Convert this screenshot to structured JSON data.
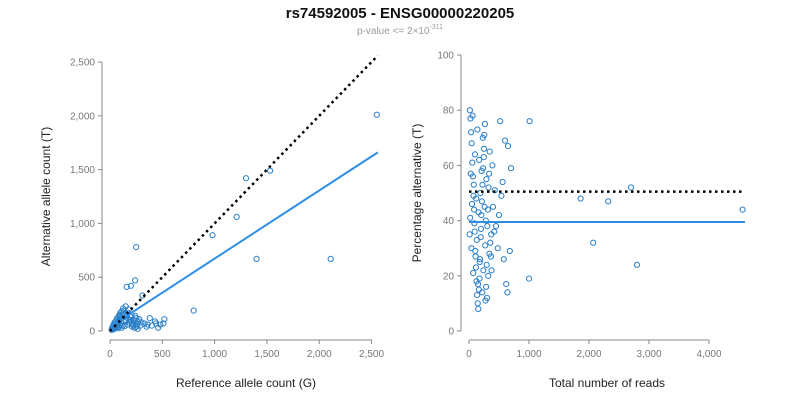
{
  "title": "rs74592005 - ENSG00000220205",
  "subtitle": {
    "text": "p-value <= 2×10",
    "exponent": "-311"
  },
  "colors": {
    "points": "#2a7fc8",
    "fit_line": "#2e8ee6",
    "reference_line": "#000000",
    "axis": "#888888",
    "tick_labels": "#777777"
  },
  "chart_data": [
    {
      "type": "scatter",
      "title": "",
      "xlabel": "Reference allele count (G)",
      "ylabel": "Alternative allele count (T)",
      "xlim": [
        0,
        2600
      ],
      "ylim": [
        0,
        2500
      ],
      "xticks": [
        0,
        500,
        1000,
        1500,
        2000,
        2500
      ],
      "yticks": [
        0,
        500,
        1000,
        1500,
        2000,
        2500
      ],
      "xtick_labels": [
        "0",
        "500",
        "1,000",
        "1,500",
        "2,000",
        "2,500"
      ],
      "ytick_labels": [
        "0",
        "500",
        "1,000",
        "1,500",
        "2,000",
        "2,500"
      ],
      "grid": false,
      "points": [
        [
          2550,
          2010
        ],
        [
          1300,
          1420
        ],
        [
          1530,
          1490
        ],
        [
          1210,
          1060
        ],
        [
          980,
          890
        ],
        [
          1400,
          670
        ],
        [
          2110,
          670
        ],
        [
          250,
          780
        ],
        [
          240,
          470
        ],
        [
          200,
          420
        ],
        [
          160,
          410
        ],
        [
          310,
          330
        ],
        [
          800,
          190
        ],
        [
          520,
          110
        ],
        [
          510,
          70
        ],
        [
          430,
          90
        ],
        [
          380,
          120
        ],
        [
          330,
          70
        ],
        [
          300,
          80
        ],
        [
          260,
          60
        ],
        [
          220,
          70
        ],
        [
          180,
          200
        ],
        [
          150,
          230
        ],
        [
          130,
          190
        ],
        [
          120,
          160
        ],
        [
          100,
          140
        ],
        [
          90,
          110
        ],
        [
          80,
          90
        ],
        [
          70,
          60
        ],
        [
          60,
          50
        ],
        [
          50,
          30
        ],
        [
          40,
          20
        ],
        [
          30,
          15
        ],
        [
          55,
          70
        ],
        [
          65,
          40
        ],
        [
          75,
          25
        ],
        [
          85,
          35
        ],
        [
          95,
          55
        ],
        [
          105,
          75
        ],
        [
          110,
          30
        ],
        [
          120,
          50
        ],
        [
          135,
          85
        ],
        [
          140,
          45
        ],
        [
          155,
          95
        ],
        [
          165,
          60
        ],
        [
          175,
          110
        ],
        [
          185,
          80
        ],
        [
          195,
          130
        ],
        [
          205,
          150
        ],
        [
          210,
          40
        ],
        [
          230,
          100
        ],
        [
          240,
          140
        ],
        [
          250,
          120
        ],
        [
          270,
          90
        ],
        [
          280,
          110
        ],
        [
          290,
          50
        ],
        [
          45,
          80
        ],
        [
          35,
          60
        ],
        [
          25,
          40
        ],
        [
          20,
          25
        ],
        [
          15,
          10
        ],
        [
          60,
          100
        ],
        [
          70,
          120
        ],
        [
          80,
          130
        ],
        [
          90,
          150
        ],
        [
          100,
          170
        ],
        [
          110,
          180
        ],
        [
          125,
          210
        ],
        [
          145,
          160
        ],
        [
          160,
          140
        ],
        [
          170,
          170
        ],
        [
          190,
          100
        ],
        [
          200,
          90
        ],
        [
          215,
          60
        ],
        [
          225,
          50
        ],
        [
          235,
          30
        ],
        [
          245,
          80
        ],
        [
          255,
          40
        ],
        [
          265,
          20
        ],
        [
          350,
          40
        ],
        [
          360,
          60
        ],
        [
          400,
          50
        ],
        [
          440,
          70
        ],
        [
          460,
          30
        ],
        [
          480,
          60
        ]
      ],
      "fit_line": [
        [
          0,
          40
        ],
        [
          2560,
          1660
        ]
      ],
      "reference_line": [
        [
          0,
          0
        ],
        [
          2560,
          2560
        ]
      ]
    },
    {
      "type": "scatter",
      "title": "",
      "xlabel": "Total number of reads",
      "ylabel": "Percentage alternative (T)",
      "xlim": [
        0,
        4600
      ],
      "ylim": [
        0,
        100
      ],
      "xticks": [
        0,
        1000,
        2000,
        3000,
        4000
      ],
      "yticks": [
        0,
        20,
        40,
        60,
        80,
        100
      ],
      "xtick_labels": [
        "0",
        "1,000",
        "2,000",
        "3,000",
        "4,000"
      ],
      "ytick_labels": [
        "0",
        "20",
        "40",
        "60",
        "80",
        "100"
      ],
      "grid": false,
      "points": [
        [
          4560,
          44
        ],
        [
          2800,
          24
        ],
        [
          2700,
          52
        ],
        [
          2320,
          47
        ],
        [
          2070,
          32
        ],
        [
          1860,
          48
        ],
        [
          1000,
          19
        ],
        [
          1010,
          76
        ],
        [
          600,
          69
        ],
        [
          650,
          67
        ],
        [
          520,
          76
        ],
        [
          560,
          54
        ],
        [
          430,
          51
        ],
        [
          450,
          38
        ],
        [
          390,
          60
        ],
        [
          370,
          35
        ],
        [
          340,
          28
        ],
        [
          320,
          20
        ],
        [
          300,
          12
        ],
        [
          290,
          55
        ],
        [
          280,
          40
        ],
        [
          270,
          31
        ],
        [
          260,
          45
        ],
        [
          250,
          66
        ],
        [
          240,
          22
        ],
        [
          230,
          70
        ],
        [
          220,
          14
        ],
        [
          210,
          58
        ],
        [
          200,
          37
        ],
        [
          190,
          50
        ],
        [
          180,
          25
        ],
        [
          170,
          62
        ],
        [
          160,
          43
        ],
        [
          150,
          17
        ],
        [
          140,
          73
        ],
        [
          130,
          33
        ],
        [
          120,
          48
        ],
        [
          110,
          27
        ],
        [
          100,
          64
        ],
        [
          90,
          39
        ],
        [
          80,
          53
        ],
        [
          70,
          21
        ],
        [
          60,
          78
        ],
        [
          50,
          46
        ],
        [
          40,
          30
        ],
        [
          30,
          57
        ],
        [
          20,
          41
        ],
        [
          10,
          35
        ],
        [
          15,
          80
        ],
        [
          25,
          77
        ],
        [
          35,
          72
        ],
        [
          45,
          68
        ],
        [
          55,
          61
        ],
        [
          65,
          56
        ],
        [
          75,
          49
        ],
        [
          85,
          44
        ],
        [
          95,
          36
        ],
        [
          105,
          29
        ],
        [
          115,
          23
        ],
        [
          125,
          18
        ],
        [
          135,
          13
        ],
        [
          145,
          10
        ],
        [
          155,
          8
        ],
        [
          165,
          15
        ],
        [
          175,
          19
        ],
        [
          185,
          26
        ],
        [
          195,
          34
        ],
        [
          205,
          42
        ],
        [
          215,
          47
        ],
        [
          225,
          53
        ],
        [
          235,
          59
        ],
        [
          245,
          63
        ],
        [
          255,
          71
        ],
        [
          265,
          75
        ],
        [
          275,
          11
        ],
        [
          285,
          16
        ],
        [
          295,
          24
        ],
        [
          305,
          38
        ],
        [
          315,
          44
        ],
        [
          325,
          52
        ],
        [
          335,
          57
        ],
        [
          345,
          65
        ],
        [
          355,
          32
        ],
        [
          365,
          27
        ],
        [
          375,
          22
        ],
        [
          400,
          45
        ],
        [
          420,
          36
        ],
        [
          480,
          30
        ],
        [
          500,
          42
        ],
        [
          540,
          49
        ],
        [
          580,
          26
        ],
        [
          620,
          17
        ],
        [
          640,
          14
        ],
        [
          680,
          29
        ],
        [
          700,
          59
        ]
      ],
      "fit_line": [
        [
          0,
          39.5
        ],
        [
          4600,
          39.5
        ]
      ],
      "reference_line": [
        [
          0,
          50.5
        ],
        [
          4600,
          50.5
        ]
      ]
    }
  ]
}
